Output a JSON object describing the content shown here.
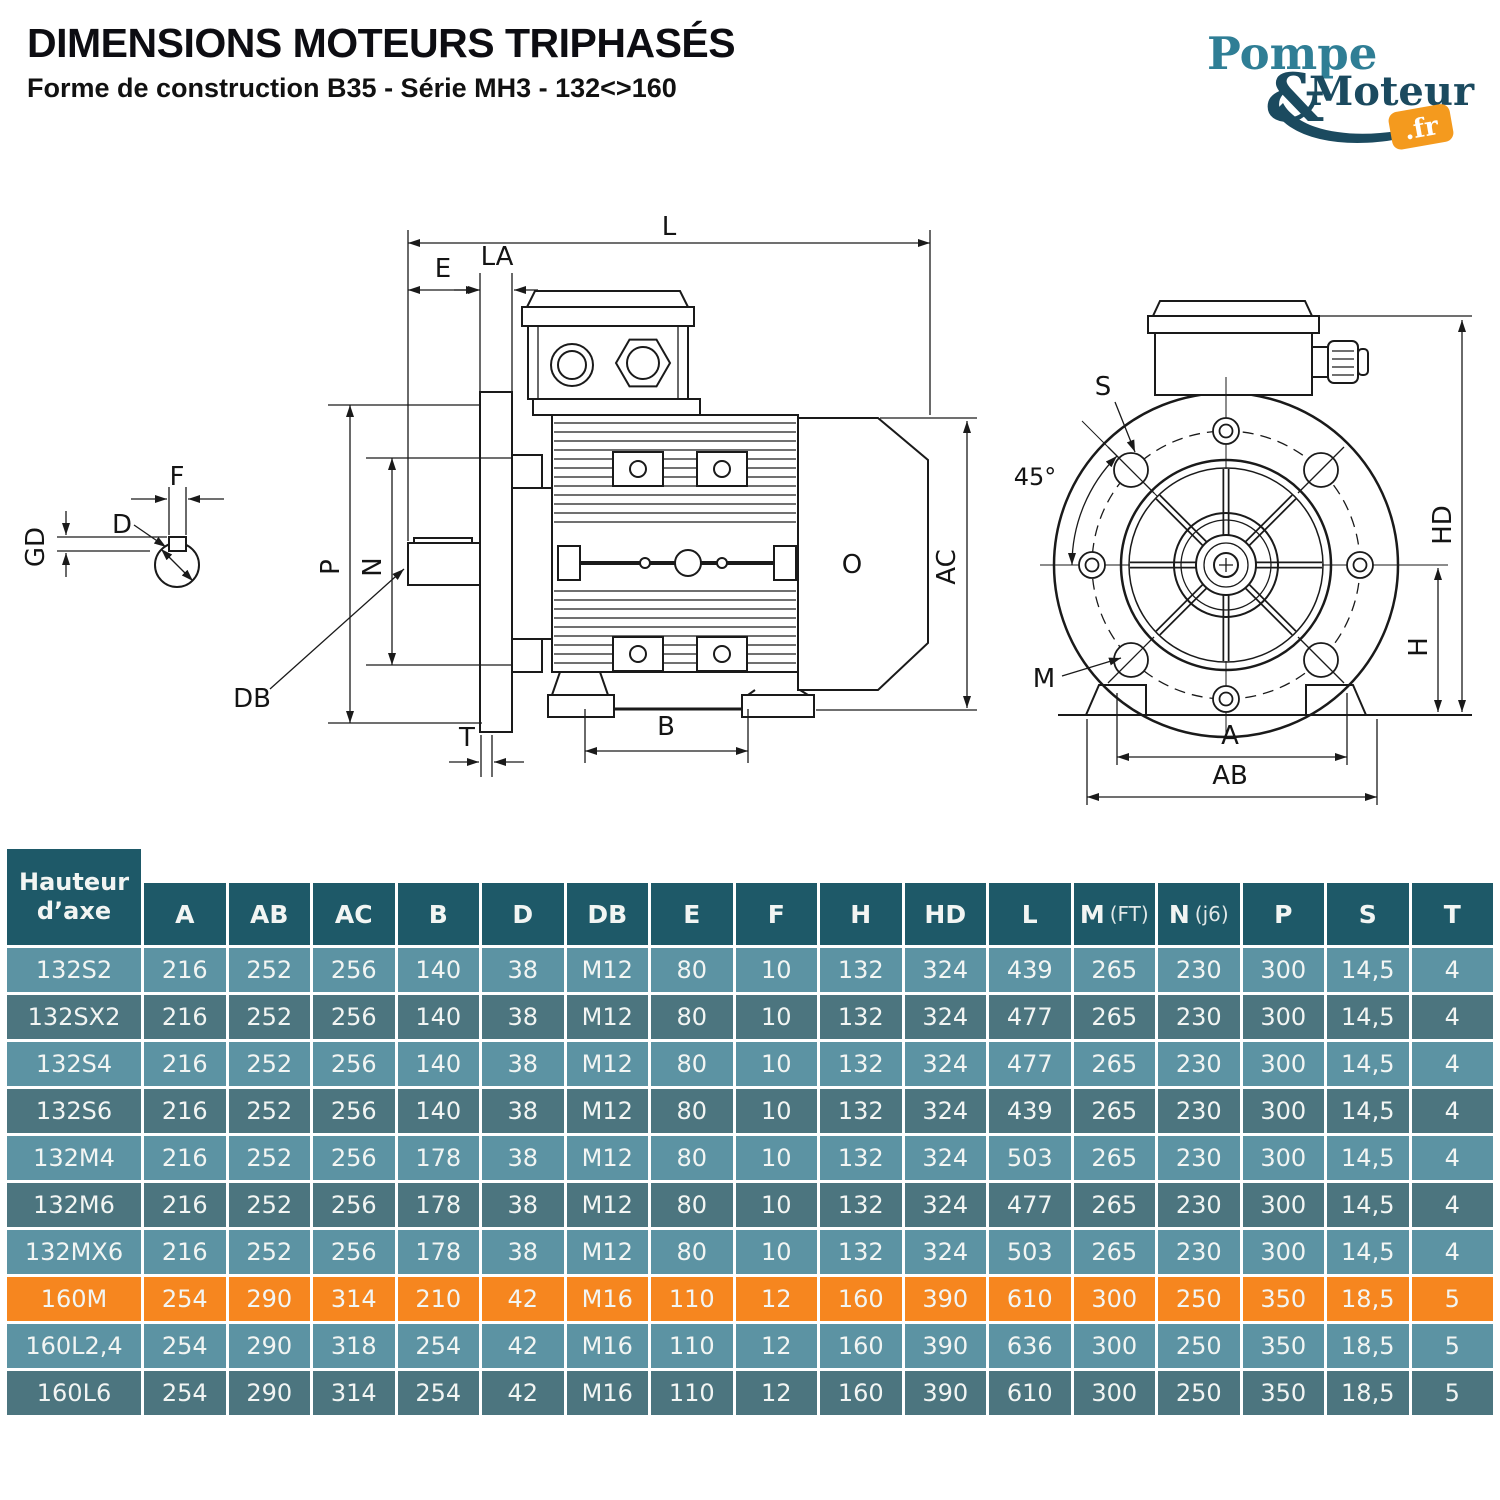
{
  "header": {
    "title": "DIMENSIONS MOTEURS TRIPHASÉS",
    "subtitle": "Forme de construction B35 - Série MH3 - 132<>160"
  },
  "logo": {
    "word1": "Pompe",
    "ampersand": "&",
    "word2": "Moteur",
    "suffix": ".fr"
  },
  "theme": {
    "header_bg": "#1E5968",
    "row_light": "#5C93A3",
    "row_dark": "#4C757F",
    "row_highlight": "#F6861F",
    "cell_text": "#F2F5F3",
    "line": "#1A1A1A",
    "logo_teal": "#2F7E95",
    "logo_navy": "#1B4A5F",
    "logo_orange": "#F49A1E"
  },
  "diagram": {
    "shaft_section": {
      "f": "F",
      "gd": "GD",
      "d": "D"
    },
    "side_view": {
      "l": "L",
      "la": "LA",
      "e": "E",
      "p": "P",
      "n": "N",
      "db": "DB",
      "t": "T",
      "b": "B",
      "ac": "AC",
      "o": "O"
    },
    "front_view": {
      "s": "S",
      "angle": "45°",
      "m": "M",
      "hd": "HD",
      "h": "H",
      "a": "A",
      "ab": "AB"
    }
  },
  "table": {
    "row_header": "Hauteur d’axe",
    "columns": [
      "A",
      "AB",
      "AC",
      "B",
      "D",
      "DB",
      "E",
      "F",
      "H",
      "HD",
      "L",
      "M (FT)",
      "N (j6)",
      "P",
      "S",
      "T"
    ],
    "rows": [
      {
        "name": "132S2",
        "values": [
          216,
          252,
          256,
          140,
          38,
          "M12",
          80,
          10,
          132,
          324,
          439,
          265,
          230,
          300,
          "14,5",
          4
        ]
      },
      {
        "name": "132SX2",
        "values": [
          216,
          252,
          256,
          140,
          38,
          "M12",
          80,
          10,
          132,
          324,
          477,
          265,
          230,
          300,
          "14,5",
          4
        ]
      },
      {
        "name": "132S4",
        "values": [
          216,
          252,
          256,
          140,
          38,
          "M12",
          80,
          10,
          132,
          324,
          477,
          265,
          230,
          300,
          "14,5",
          4
        ]
      },
      {
        "name": "132S6",
        "values": [
          216,
          252,
          256,
          140,
          38,
          "M12",
          80,
          10,
          132,
          324,
          439,
          265,
          230,
          300,
          "14,5",
          4
        ]
      },
      {
        "name": "132M4",
        "values": [
          216,
          252,
          256,
          178,
          38,
          "M12",
          80,
          10,
          132,
          324,
          503,
          265,
          230,
          300,
          "14,5",
          4
        ]
      },
      {
        "name": "132M6",
        "values": [
          216,
          252,
          256,
          178,
          38,
          "M12",
          80,
          10,
          132,
          324,
          477,
          265,
          230,
          300,
          "14,5",
          4
        ]
      },
      {
        "name": "132MX6",
        "values": [
          216,
          252,
          256,
          178,
          38,
          "M12",
          80,
          10,
          132,
          324,
          503,
          265,
          230,
          300,
          "14,5",
          4
        ]
      },
      {
        "name": "160M",
        "highlight": true,
        "values": [
          254,
          290,
          314,
          210,
          42,
          "M16",
          110,
          12,
          160,
          390,
          610,
          300,
          250,
          350,
          "18,5",
          5
        ]
      },
      {
        "name": "160L2,4",
        "values": [
          254,
          290,
          318,
          254,
          42,
          "M16",
          110,
          12,
          160,
          390,
          636,
          300,
          250,
          350,
          "18,5",
          5
        ]
      },
      {
        "name": "160L6",
        "values": [
          254,
          290,
          314,
          254,
          42,
          "M16",
          110,
          12,
          160,
          390,
          610,
          300,
          250,
          350,
          "18,5",
          5
        ]
      }
    ]
  }
}
